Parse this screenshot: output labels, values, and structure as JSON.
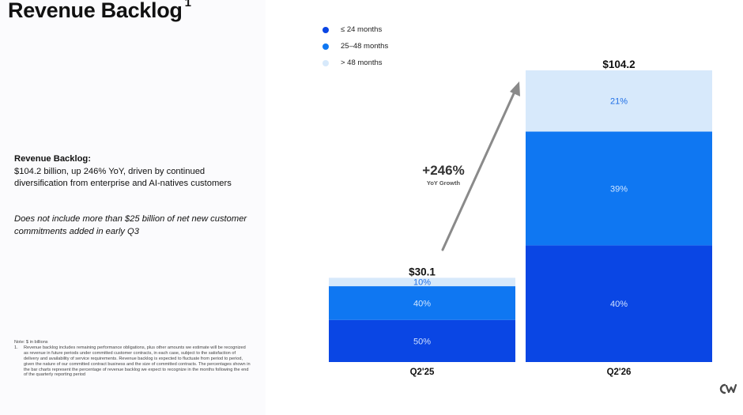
{
  "title": "Revenue Backlog",
  "title_footnote": "1",
  "description": {
    "heading": "Revenue Backlog:",
    "body": "$104.2 billion, up 246% YoY, driven by continued diversification from enterprise and AI-natives customers",
    "italic": "Does not include more than $25 billion of net new customer commitments added in early Q3"
  },
  "notes": {
    "unit_note": "Note: $ in billions",
    "footnote_number": "1.",
    "footnote_text": "Revenue backlog includes remaining performance obligations, plus other amounts we estimate will be recognized as revenue in future periods under committed customer contracts, in each case, subject to the satisfaction of delivery and availability of service requirements. Revenue backlog is expected to fluctuate from period to period, given the nature of our committed contract business and the size of committed contracts. The percentages shown in the bar charts represent the percentage of revenue backlog we expect to recognize in the months following the end of the quarterly reporting period"
  },
  "colors": {
    "dark_blue": "#0a46e4",
    "mid_blue": "#0f77f2",
    "light_blue": "#d7e9fb",
    "arrow": "#8a8a8a"
  },
  "logo_icon": "company-logo-icon",
  "chart_data": {
    "type": "bar",
    "stacked": true,
    "unit": "$ in billions",
    "categories": [
      "Q2'25",
      "Q2'26"
    ],
    "totals": [
      30.1,
      104.2
    ],
    "total_labels": [
      "$30.1",
      "$104.2"
    ],
    "series": [
      {
        "name": "≤ 24 months",
        "color": "#0a46e4",
        "percent": [
          50,
          40
        ],
        "labels": [
          "50%",
          "40%"
        ]
      },
      {
        "name": "25–48 months",
        "color": "#0f77f2",
        "percent": [
          40,
          39
        ],
        "labels": [
          "40%",
          "39%"
        ]
      },
      {
        "name": "> 48 months",
        "color": "#d7e9fb",
        "percent": [
          10,
          21
        ],
        "labels": [
          "10%",
          "21%"
        ]
      }
    ],
    "annotation": {
      "value": "+246%",
      "caption": "YoY Growth"
    },
    "legend_position": "top-left",
    "grid": false
  }
}
